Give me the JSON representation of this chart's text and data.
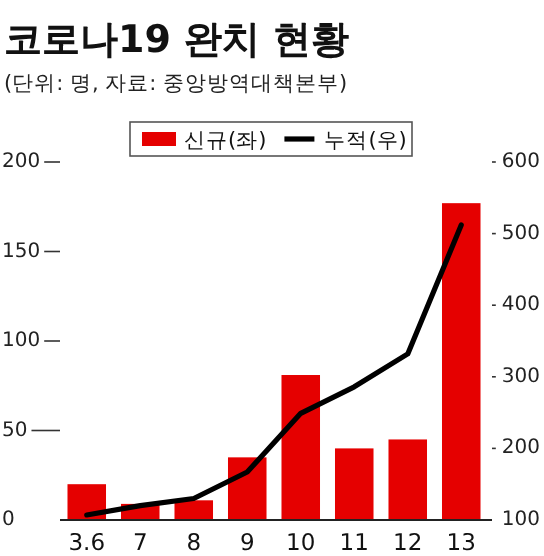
{
  "chart_data": {
    "type": "bar",
    "title": "코로나19 완치 현황",
    "subtitle": "(단위: 명, 자료: 중앙방역대책본부)",
    "categories": [
      "3.6",
      "7",
      "8",
      "9",
      "10",
      "11",
      "12",
      "13"
    ],
    "series": [
      {
        "name": "신규(좌)",
        "color": "#e50000",
        "values": [
          20,
          9,
          11,
          35,
          81,
          40,
          45,
          177
        ]
      },
      {
        "name": "누적(우)",
        "type": "line",
        "axis": "y2",
        "color": "#000000",
        "marker": "none",
        "values": [
          107,
          120,
          130,
          167,
          249,
          286,
          332,
          512
        ]
      }
    ],
    "ylim": [
      0,
      200
    ],
    "yticks": [
      0,
      50,
      100,
      150,
      200
    ],
    "y2lim": [
      100,
      600
    ],
    "y2ticks": [
      100,
      200,
      300,
      400,
      500,
      600
    ],
    "legend": "top",
    "grid": false
  }
}
